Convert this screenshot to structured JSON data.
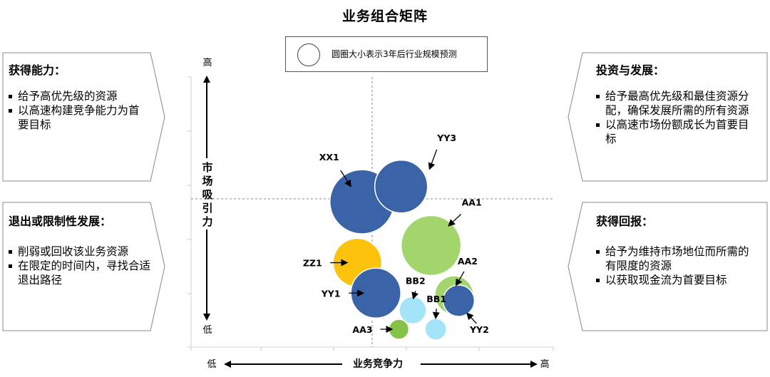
{
  "chart_data": {
    "type": "scatter",
    "title": "业务组合矩阵",
    "xlabel": "业务竞争力",
    "ylabel": "市场吸引力",
    "x_low": "低",
    "x_high": "高",
    "y_low": "低",
    "y_high": "高",
    "legend_text": "圆圈大小表示3年后行业规模预测",
    "xlim": [
      0,
      100
    ],
    "ylim": [
      0,
      100
    ],
    "bubbles": [
      {
        "label": "XX1",
        "x": 38,
        "y": 67,
        "size": 45,
        "color": "#3b64a8"
      },
      {
        "label": "YY3",
        "x": 55,
        "y": 75,
        "size": 37,
        "color": "#3b64a8"
      },
      {
        "label": "AA1",
        "x": 68,
        "y": 44,
        "size": 42,
        "color": "#a2d66c"
      },
      {
        "label": "ZZ1",
        "x": 36,
        "y": 35,
        "size": 34,
        "color": "#fcc20c"
      },
      {
        "label": "YY1",
        "x": 44,
        "y": 19,
        "size": 35,
        "color": "#3b64a8"
      },
      {
        "label": "AA2",
        "x": 78,
        "y": 18,
        "size": 27,
        "color": "#a2d66c"
      },
      {
        "label": "YY2",
        "x": 80,
        "y": 15,
        "size": 22,
        "color": "#3b64a8"
      },
      {
        "label": "BB2",
        "x": 60,
        "y": 10,
        "size": 19,
        "color": "#a4e4f8"
      },
      {
        "label": "BB1",
        "x": 70,
        "y": 0,
        "size": 15,
        "color": "#a4e4f8"
      },
      {
        "label": "AA3",
        "x": 54,
        "y": 0,
        "size": 14,
        "color": "#84c24a"
      }
    ]
  },
  "panels": {
    "top_left": {
      "title": "获得能力：",
      "items": [
        "给予高优先级的资源",
        "以高速构建竞争能力为首要目标"
      ]
    },
    "bottom_left": {
      "title": "退出或限制性发展：",
      "items": [
        "削弱或回收该业务资源",
        "在限定的时间内，寻找合适退出路径"
      ]
    },
    "top_right": {
      "title": "投资与发展：",
      "items": [
        "给予最高优先级和最佳资源分配，确保发展所需的所有资源",
        "以高速市场份额成长为首要目标"
      ]
    },
    "bottom_right": {
      "title": "获得回报：",
      "items": [
        "给予为维持市场地位而所需的有限度的资源",
        "以获取现金流为首要目标"
      ]
    }
  }
}
